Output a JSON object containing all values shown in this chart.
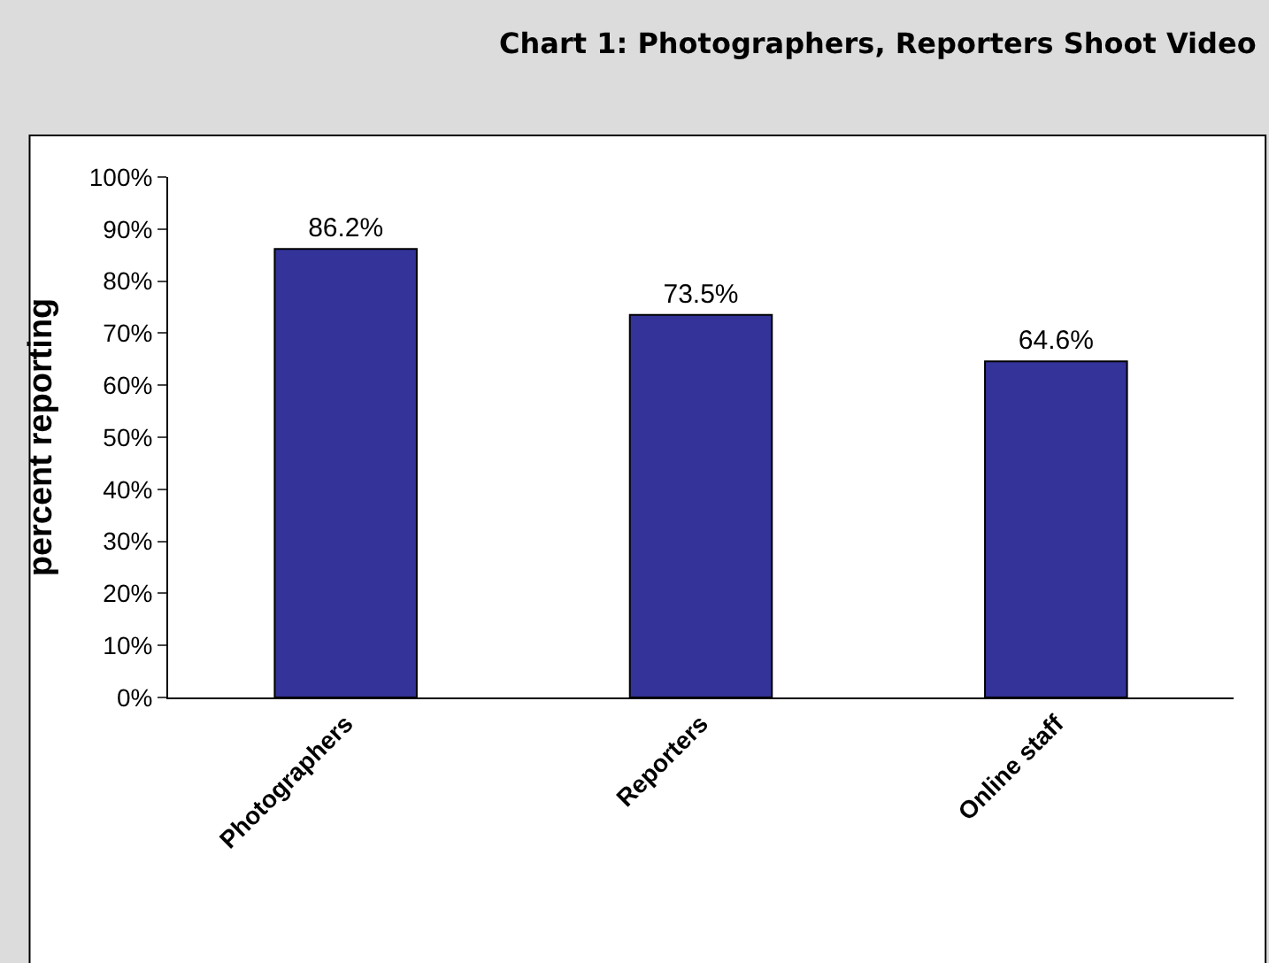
{
  "chart_data": {
    "type": "bar",
    "title": "Chart 1: Photographers, Reporters Shoot Video",
    "ylabel": "percent reporting",
    "categories": [
      "Photographers",
      "Reporters",
      "Online staff"
    ],
    "values": [
      86.2,
      73.5,
      64.6
    ],
    "color": "#333399",
    "value_labels": [
      "86.2%",
      "73.5%",
      "64.6%"
    ],
    "ylim": [
      0,
      100
    ],
    "yticks": [
      {
        "value": 0,
        "label": "0%"
      },
      {
        "value": 10,
        "label": "10%"
      },
      {
        "value": 20,
        "label": "20%"
      },
      {
        "value": 30,
        "label": "30%"
      },
      {
        "value": 40,
        "label": "40%"
      },
      {
        "value": 50,
        "label": "50%"
      },
      {
        "value": 60,
        "label": "60%"
      },
      {
        "value": 70,
        "label": "70%"
      },
      {
        "value": 80,
        "label": "80%"
      },
      {
        "value": 90,
        "label": "90%"
      },
      {
        "value": 100,
        "label": "100%"
      }
    ],
    "grid": false,
    "legend": false
  }
}
